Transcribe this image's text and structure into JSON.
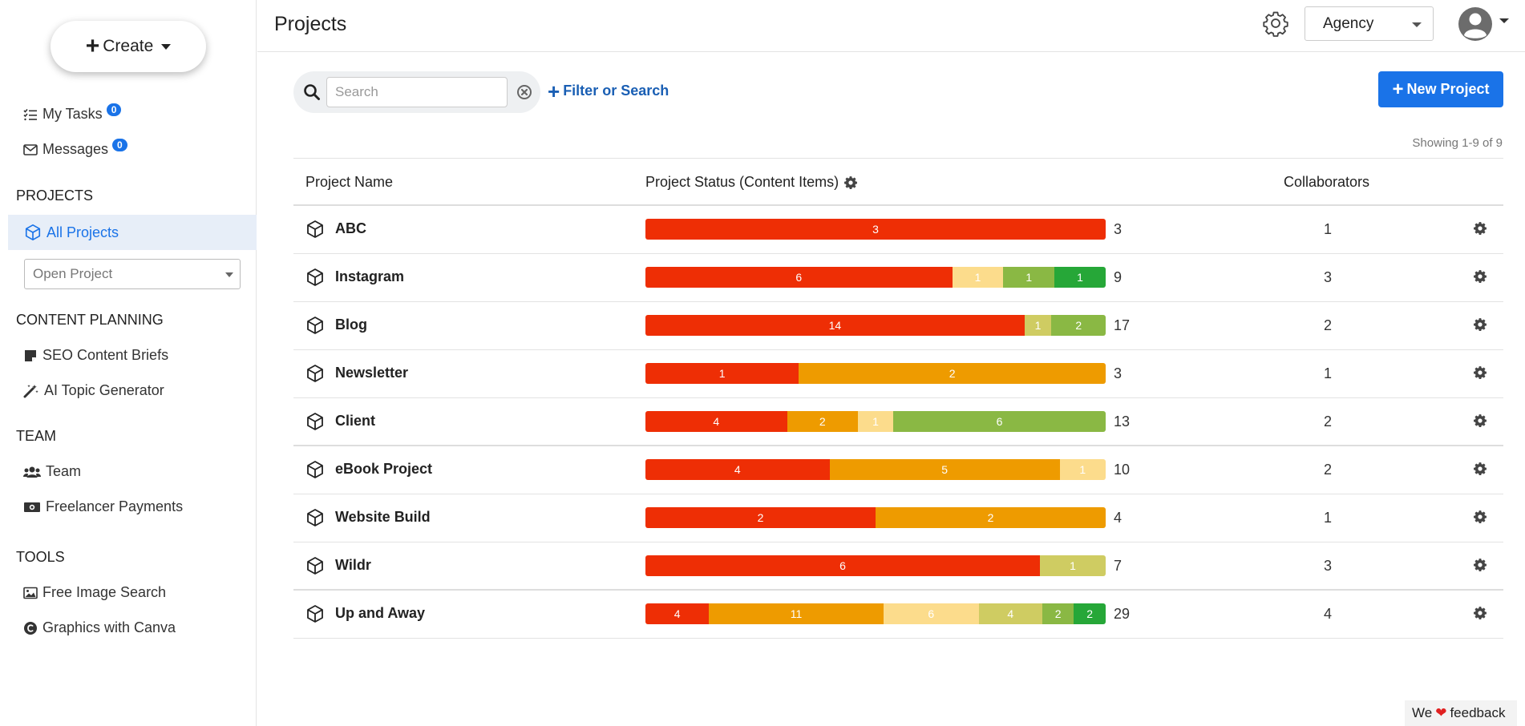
{
  "sidebar": {
    "create_label": "Create",
    "my_tasks": {
      "label": "My Tasks",
      "count": "0"
    },
    "messages": {
      "label": "Messages",
      "count": "0"
    },
    "sections": {
      "projects": "PROJECTS",
      "content_planning": "CONTENT PLANNING",
      "team": "TEAM",
      "tools": "TOOLS"
    },
    "all_projects": "All Projects",
    "open_project_placeholder": "Open Project",
    "seo_briefs": "SEO Content Briefs",
    "ai_topic": "AI Topic Generator",
    "team": "Team",
    "freelancer_payments": "Freelancer Payments",
    "free_image_search": "Free Image Search",
    "graphics_canva": "Graphics with Canva"
  },
  "header": {
    "title": "Projects",
    "workspace": "Agency"
  },
  "toolbar": {
    "search_placeholder": "Search",
    "filter_label": "Filter or Search",
    "new_project_label": "New Project",
    "showing": "Showing 1-9 of 9"
  },
  "table": {
    "columns": {
      "name": "Project Name",
      "status": "Project Status (Content Items)",
      "collaborators": "Collaborators"
    },
    "status_colors": [
      "#ee2e05",
      "#ee9b00",
      "#fcdc8c",
      "#cfcc62",
      "#8ab844",
      "#26a738"
    ],
    "rows": [
      {
        "name": "ABC",
        "segments": [
          {
            "v": 3,
            "c": 0
          }
        ],
        "total": "3",
        "collaborators": "1"
      },
      {
        "name": "Instagram",
        "segments": [
          {
            "v": 6,
            "c": 0
          },
          {
            "v": 1,
            "c": 2
          },
          {
            "v": 1,
            "c": 4
          },
          {
            "v": 1,
            "c": 5
          }
        ],
        "total": "9",
        "collaborators": "3"
      },
      {
        "name": "Blog",
        "segments": [
          {
            "v": 14,
            "c": 0
          },
          {
            "v": 1,
            "c": 3
          },
          {
            "v": 2,
            "c": 4
          }
        ],
        "total": "17",
        "collaborators": "2"
      },
      {
        "name": "Newsletter",
        "segments": [
          {
            "v": 1,
            "c": 0
          },
          {
            "v": 2,
            "c": 1
          }
        ],
        "total": "3",
        "collaborators": "1"
      },
      {
        "name": "Client",
        "segments": [
          {
            "v": 4,
            "c": 0
          },
          {
            "v": 2,
            "c": 1
          },
          {
            "v": 1,
            "c": 2
          },
          {
            "v": 6,
            "c": 4
          }
        ],
        "total": "13",
        "collaborators": "2"
      },
      {
        "name": "eBook Project",
        "segments": [
          {
            "v": 4,
            "c": 0
          },
          {
            "v": 5,
            "c": 1
          },
          {
            "v": 1,
            "c": 2
          }
        ],
        "total": "10",
        "collaborators": "2"
      },
      {
        "name": "Website Build",
        "segments": [
          {
            "v": 2,
            "c": 0
          },
          {
            "v": 2,
            "c": 1
          }
        ],
        "total": "4",
        "collaborators": "1"
      },
      {
        "name": "Wildr",
        "segments": [
          {
            "v": 6,
            "c": 0
          },
          {
            "v": 1,
            "c": 3
          }
        ],
        "total": "7",
        "collaborators": "3"
      },
      {
        "name": "Up and Away",
        "segments": [
          {
            "v": 4,
            "c": 0
          },
          {
            "v": 11,
            "c": 1
          },
          {
            "v": 6,
            "c": 2
          },
          {
            "v": 4,
            "c": 3
          },
          {
            "v": 2,
            "c": 4
          },
          {
            "v": 2,
            "c": 5
          }
        ],
        "total": "29",
        "collaborators": "4"
      }
    ]
  },
  "feedback": {
    "pre": "We",
    "post": "feedback"
  }
}
